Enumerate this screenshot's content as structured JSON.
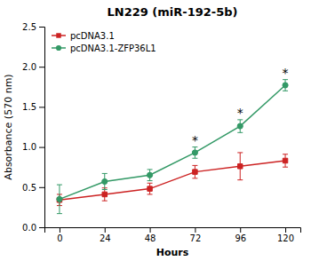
{
  "chart_data": {
    "type": "line",
    "title": "LN229 (miR-192-5b)",
    "x_label": "Hours",
    "y_label": "Absorbance (570 nm)",
    "x": [
      0,
      24,
      48,
      72,
      96,
      120
    ],
    "series": [
      {
        "name": "pcDNA3.1",
        "color": "#cc2222",
        "marker": "square",
        "values": [
          0.34,
          0.41,
          0.48,
          0.69,
          0.76,
          0.83
        ],
        "errors": [
          0.07,
          0.08,
          0.07,
          0.08,
          0.17,
          0.08
        ]
      },
      {
        "name": "pcDNA3.1-ZFP36L1",
        "color": "#339966",
        "marker": "circle",
        "values": [
          0.35,
          0.57,
          0.65,
          0.93,
          1.26,
          1.77
        ],
        "errors": [
          0.18,
          0.1,
          0.07,
          0.07,
          0.08,
          0.07
        ]
      }
    ],
    "xlim": [
      -8,
      128
    ],
    "xticks": [
      0,
      24,
      48,
      72,
      96,
      120
    ],
    "ylim": [
      0,
      2.5
    ],
    "yticks": [
      {
        "value": 0,
        "label": "0.0"
      },
      0.5,
      {
        "value": 1.0,
        "label": "1.0"
      },
      1.5,
      {
        "value": 2.0,
        "label": "2.0"
      },
      2.5
    ],
    "grid": false,
    "legend": "upper left",
    "annotations": [
      {
        "text": "*",
        "x": 72
      },
      {
        "text": "*",
        "x": 96
      },
      {
        "text": "*",
        "x": 120
      }
    ]
  }
}
